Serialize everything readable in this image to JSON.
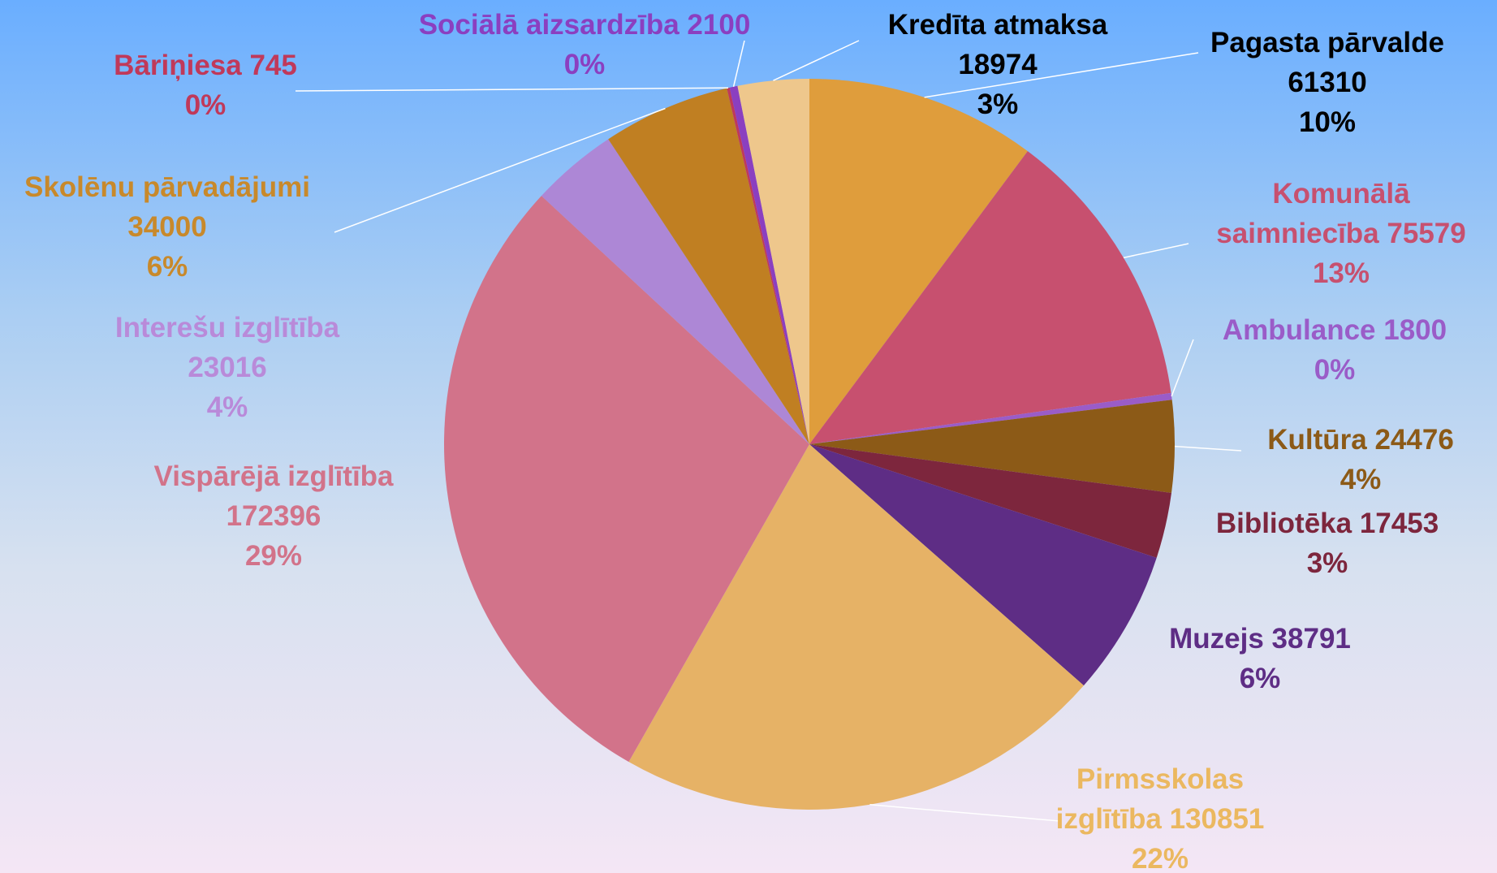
{
  "chart_data": {
    "type": "pie",
    "categories": [
      "Pagasta pārvalde",
      "Komunālā saimniecība",
      "Ambulance",
      "Kultūra",
      "Bibliotēka",
      "Muzejs",
      "Pirmsskolas izglītība",
      "Vispārējā izglītība",
      "Interešu izglītība",
      "Skolēnu pārvadājumi",
      "Bāriņiesa",
      "Sociālā aizsardzība",
      "Kredīta atmaksa"
    ],
    "values": [
      61310,
      75579,
      1800,
      24476,
      17453,
      38791,
      130851,
      172396,
      23016,
      34000,
      745,
      2100,
      18974
    ],
    "percent_labels": [
      "10%",
      "13%",
      "0%",
      "4%",
      "3%",
      "6%",
      "22%",
      "29%",
      "4%",
      "6%",
      "0%",
      "0%",
      "3%"
    ],
    "colors": [
      "#df9d3c",
      "#c7506f",
      "#9a5cc8",
      "#8c5a17",
      "#7d263d",
      "#5e2d85",
      "#e6b266",
      "#d2738a",
      "#ad87d6",
      "#c07f22",
      "#c0385b",
      "#8b3fc0",
      "#eec78c"
    ],
    "label_colors": [
      "#000000",
      "#c7506f",
      "#9a5cc8",
      "#8c5a17",
      "#7d263d",
      "#5e2d85",
      "#ebb860",
      "#d2738a",
      "#b98ad9",
      "#c8892b",
      "#c0395a",
      "#8b3fc0",
      "#000000"
    ]
  }
}
